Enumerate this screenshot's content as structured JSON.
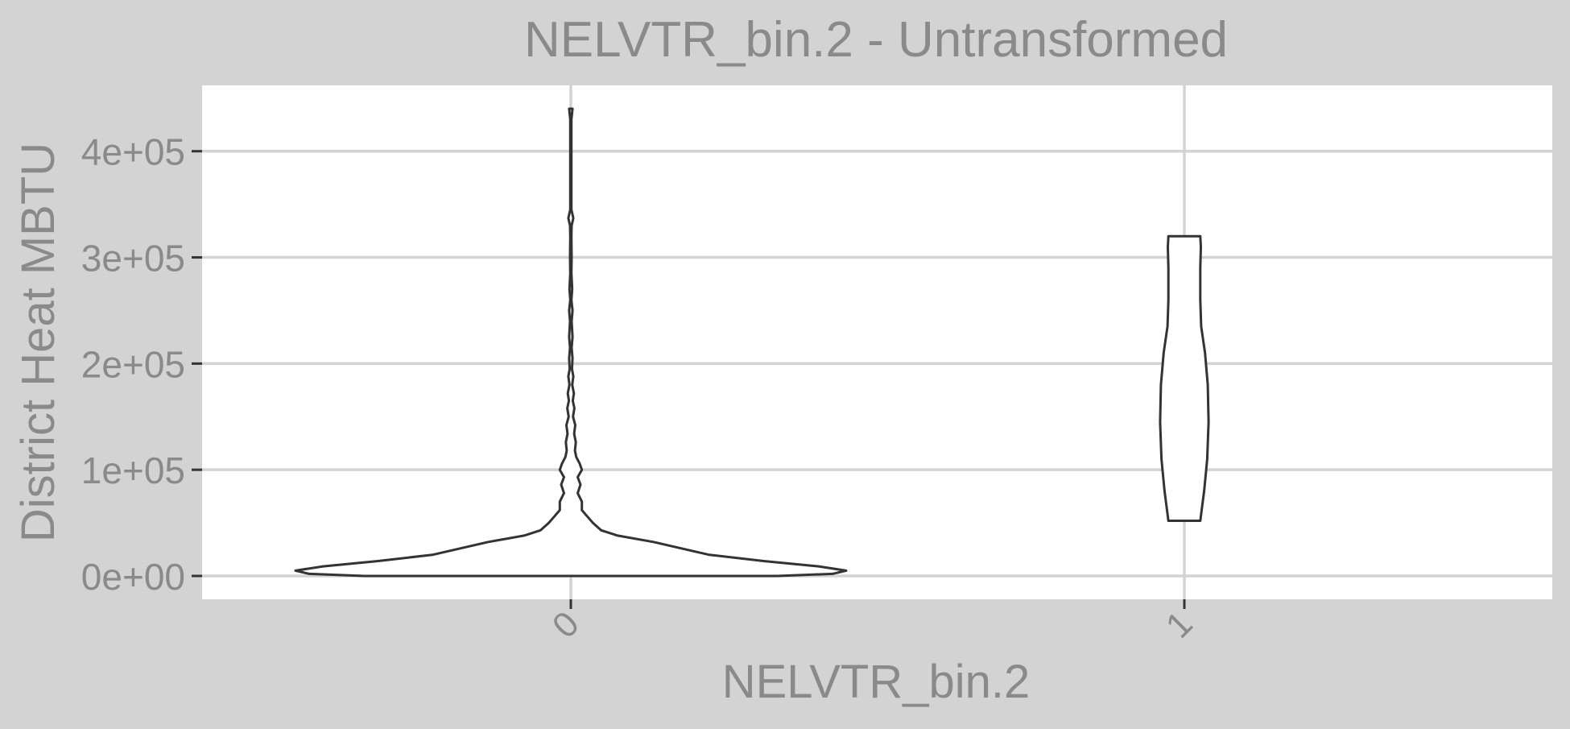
{
  "chart_data": {
    "type": "violin",
    "title": "NELVTR_bin.2 - Untransformed",
    "xlabel": "NELVTR_bin.2",
    "ylabel": "District Heat MBTU",
    "categories": [
      "0",
      "1"
    ],
    "y_tick_labels": [
      "0e+00",
      "1e+05",
      "2e+05",
      "3e+05",
      "4e+05"
    ],
    "y_ticks": [
      0,
      100000,
      200000,
      300000,
      400000
    ],
    "ylim": [
      -22000,
      462000
    ],
    "grid": true,
    "colors": {
      "background": "#d3d3d3",
      "panel": "#ffffff",
      "grid": "#d3d3d3",
      "outline": "#333333",
      "text": "#8a8a8a"
    },
    "violins": [
      {
        "category": "0",
        "y_min": 0,
        "y_max": 440000,
        "density_profile": [
          [
            0,
            0.75
          ],
          [
            2000,
            0.95
          ],
          [
            5000,
            1.0
          ],
          [
            9000,
            0.9
          ],
          [
            14000,
            0.7
          ],
          [
            20000,
            0.5
          ],
          [
            26000,
            0.4
          ],
          [
            32000,
            0.3
          ],
          [
            38000,
            0.17
          ],
          [
            43000,
            0.11
          ],
          [
            50000,
            0.08
          ],
          [
            56000,
            0.06
          ],
          [
            62000,
            0.04
          ],
          [
            70000,
            0.04
          ],
          [
            78000,
            0.025
          ],
          [
            86000,
            0.035
          ],
          [
            93000,
            0.025
          ],
          [
            100000,
            0.04
          ],
          [
            106000,
            0.032
          ],
          [
            112000,
            0.02
          ],
          [
            118000,
            0.015
          ],
          [
            126000,
            0.018
          ],
          [
            134000,
            0.012
          ],
          [
            142000,
            0.016
          ],
          [
            150000,
            0.008
          ],
          [
            158000,
            0.013
          ],
          [
            165000,
            0.007
          ],
          [
            172000,
            0.011
          ],
          [
            180000,
            0.005
          ],
          [
            188000,
            0.009
          ],
          [
            195000,
            0.004
          ],
          [
            205000,
            0.006
          ],
          [
            215000,
            0.003
          ],
          [
            225000,
            0.006
          ],
          [
            240000,
            0.003
          ],
          [
            250000,
            0.006
          ],
          [
            260000,
            0.002
          ],
          [
            270000,
            0.005
          ],
          [
            285000,
            0.002
          ],
          [
            300000,
            0.003
          ],
          [
            320000,
            0.002
          ],
          [
            330000,
            0.003
          ],
          [
            337000,
            0.009
          ],
          [
            345000,
            0.002
          ],
          [
            370000,
            0.002
          ],
          [
            400000,
            0.002
          ],
          [
            430000,
            0.002
          ],
          [
            440000,
            0.006
          ]
        ]
      },
      {
        "category": "1",
        "y_min": 52000,
        "y_max": 320000,
        "density_profile": [
          [
            52000,
            0.058
          ],
          [
            80000,
            0.072
          ],
          [
            110000,
            0.083
          ],
          [
            145000,
            0.088
          ],
          [
            180000,
            0.085
          ],
          [
            210000,
            0.075
          ],
          [
            235000,
            0.061
          ],
          [
            260000,
            0.058
          ],
          [
            290000,
            0.058
          ],
          [
            310000,
            0.06
          ],
          [
            320000,
            0.058
          ]
        ]
      }
    ]
  }
}
